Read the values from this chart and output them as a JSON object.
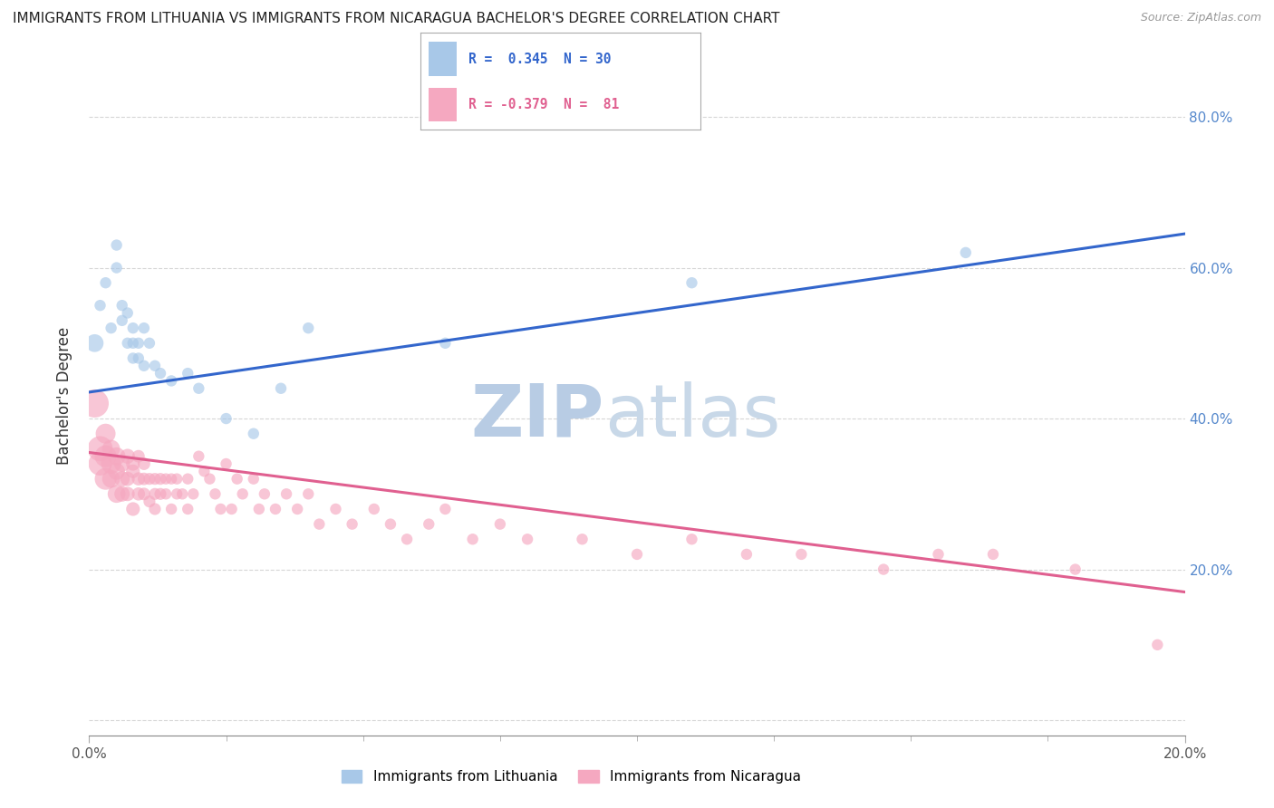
{
  "title": "IMMIGRANTS FROM LITHUANIA VS IMMIGRANTS FROM NICARAGUA BACHELOR'S DEGREE CORRELATION CHART",
  "source": "Source: ZipAtlas.com",
  "ylabel": "Bachelor's Degree",
  "bg_color": "#ffffff",
  "grid_color": "#cccccc",
  "blue_scatter_color": "#a8c8e8",
  "pink_scatter_color": "#f5a8c0",
  "blue_line_color": "#3366cc",
  "pink_line_color": "#e06090",
  "watermark_color": "#ccd8e8",
  "xlim": [
    0.0,
    0.2
  ],
  "ylim": [
    -0.02,
    0.88
  ],
  "ytick_positions": [
    0.0,
    0.2,
    0.4,
    0.6,
    0.8
  ],
  "ytick_labels_right": [
    "",
    "20.0%",
    "40.0%",
    "60.0%",
    "80.0%"
  ],
  "blue_line_y0": 0.435,
  "blue_line_y1": 0.645,
  "pink_line_y0": 0.355,
  "pink_line_y1": 0.17,
  "lithuania_x": [
    0.001,
    0.002,
    0.003,
    0.004,
    0.005,
    0.005,
    0.006,
    0.006,
    0.007,
    0.007,
    0.008,
    0.008,
    0.008,
    0.009,
    0.009,
    0.01,
    0.01,
    0.011,
    0.012,
    0.013,
    0.015,
    0.018,
    0.02,
    0.025,
    0.03,
    0.035,
    0.04,
    0.065,
    0.11,
    0.16
  ],
  "lithuania_y": [
    0.5,
    0.55,
    0.58,
    0.52,
    0.63,
    0.6,
    0.55,
    0.53,
    0.54,
    0.5,
    0.48,
    0.52,
    0.5,
    0.5,
    0.48,
    0.47,
    0.52,
    0.5,
    0.47,
    0.46,
    0.45,
    0.46,
    0.44,
    0.4,
    0.38,
    0.44,
    0.52,
    0.5,
    0.58,
    0.62
  ],
  "lithuania_sizes": [
    200,
    80,
    80,
    80,
    80,
    80,
    80,
    80,
    80,
    80,
    80,
    80,
    80,
    80,
    80,
    80,
    80,
    80,
    80,
    80,
    80,
    80,
    80,
    80,
    80,
    80,
    80,
    80,
    80,
    80
  ],
  "nicaragua_x": [
    0.001,
    0.002,
    0.002,
    0.003,
    0.003,
    0.003,
    0.004,
    0.004,
    0.004,
    0.005,
    0.005,
    0.005,
    0.006,
    0.006,
    0.006,
    0.007,
    0.007,
    0.007,
    0.008,
    0.008,
    0.008,
    0.009,
    0.009,
    0.009,
    0.01,
    0.01,
    0.01,
    0.011,
    0.011,
    0.012,
    0.012,
    0.012,
    0.013,
    0.013,
    0.014,
    0.014,
    0.015,
    0.015,
    0.016,
    0.016,
    0.017,
    0.018,
    0.018,
    0.019,
    0.02,
    0.021,
    0.022,
    0.023,
    0.024,
    0.025,
    0.026,
    0.027,
    0.028,
    0.03,
    0.031,
    0.032,
    0.034,
    0.036,
    0.038,
    0.04,
    0.042,
    0.045,
    0.048,
    0.052,
    0.055,
    0.058,
    0.062,
    0.065,
    0.07,
    0.075,
    0.08,
    0.09,
    0.1,
    0.11,
    0.12,
    0.13,
    0.145,
    0.155,
    0.165,
    0.18,
    0.195
  ],
  "nicaragua_y": [
    0.42,
    0.36,
    0.34,
    0.32,
    0.35,
    0.38,
    0.34,
    0.32,
    0.36,
    0.35,
    0.3,
    0.33,
    0.34,
    0.32,
    0.3,
    0.35,
    0.32,
    0.3,
    0.34,
    0.33,
    0.28,
    0.32,
    0.3,
    0.35,
    0.32,
    0.3,
    0.34,
    0.32,
    0.29,
    0.32,
    0.3,
    0.28,
    0.32,
    0.3,
    0.32,
    0.3,
    0.32,
    0.28,
    0.32,
    0.3,
    0.3,
    0.32,
    0.28,
    0.3,
    0.35,
    0.33,
    0.32,
    0.3,
    0.28,
    0.34,
    0.28,
    0.32,
    0.3,
    0.32,
    0.28,
    0.3,
    0.28,
    0.3,
    0.28,
    0.3,
    0.26,
    0.28,
    0.26,
    0.28,
    0.26,
    0.24,
    0.26,
    0.28,
    0.24,
    0.26,
    0.24,
    0.24,
    0.22,
    0.24,
    0.22,
    0.22,
    0.2,
    0.22,
    0.22,
    0.2,
    0.1
  ],
  "nicaragua_sizes": [
    500,
    400,
    350,
    300,
    300,
    250,
    250,
    200,
    200,
    200,
    200,
    180,
    160,
    150,
    150,
    140,
    130,
    130,
    120,
    120,
    120,
    110,
    110,
    100,
    100,
    100,
    100,
    90,
    90,
    90,
    90,
    90,
    90,
    90,
    80,
    80,
    80,
    80,
    80,
    80,
    80,
    80,
    80,
    80,
    80,
    80,
    80,
    80,
    80,
    80,
    80,
    80,
    80,
    80,
    80,
    80,
    80,
    80,
    80,
    80,
    80,
    80,
    80,
    80,
    80,
    80,
    80,
    80,
    80,
    80,
    80,
    80,
    80,
    80,
    80,
    80,
    80,
    80,
    80,
    80,
    80
  ]
}
